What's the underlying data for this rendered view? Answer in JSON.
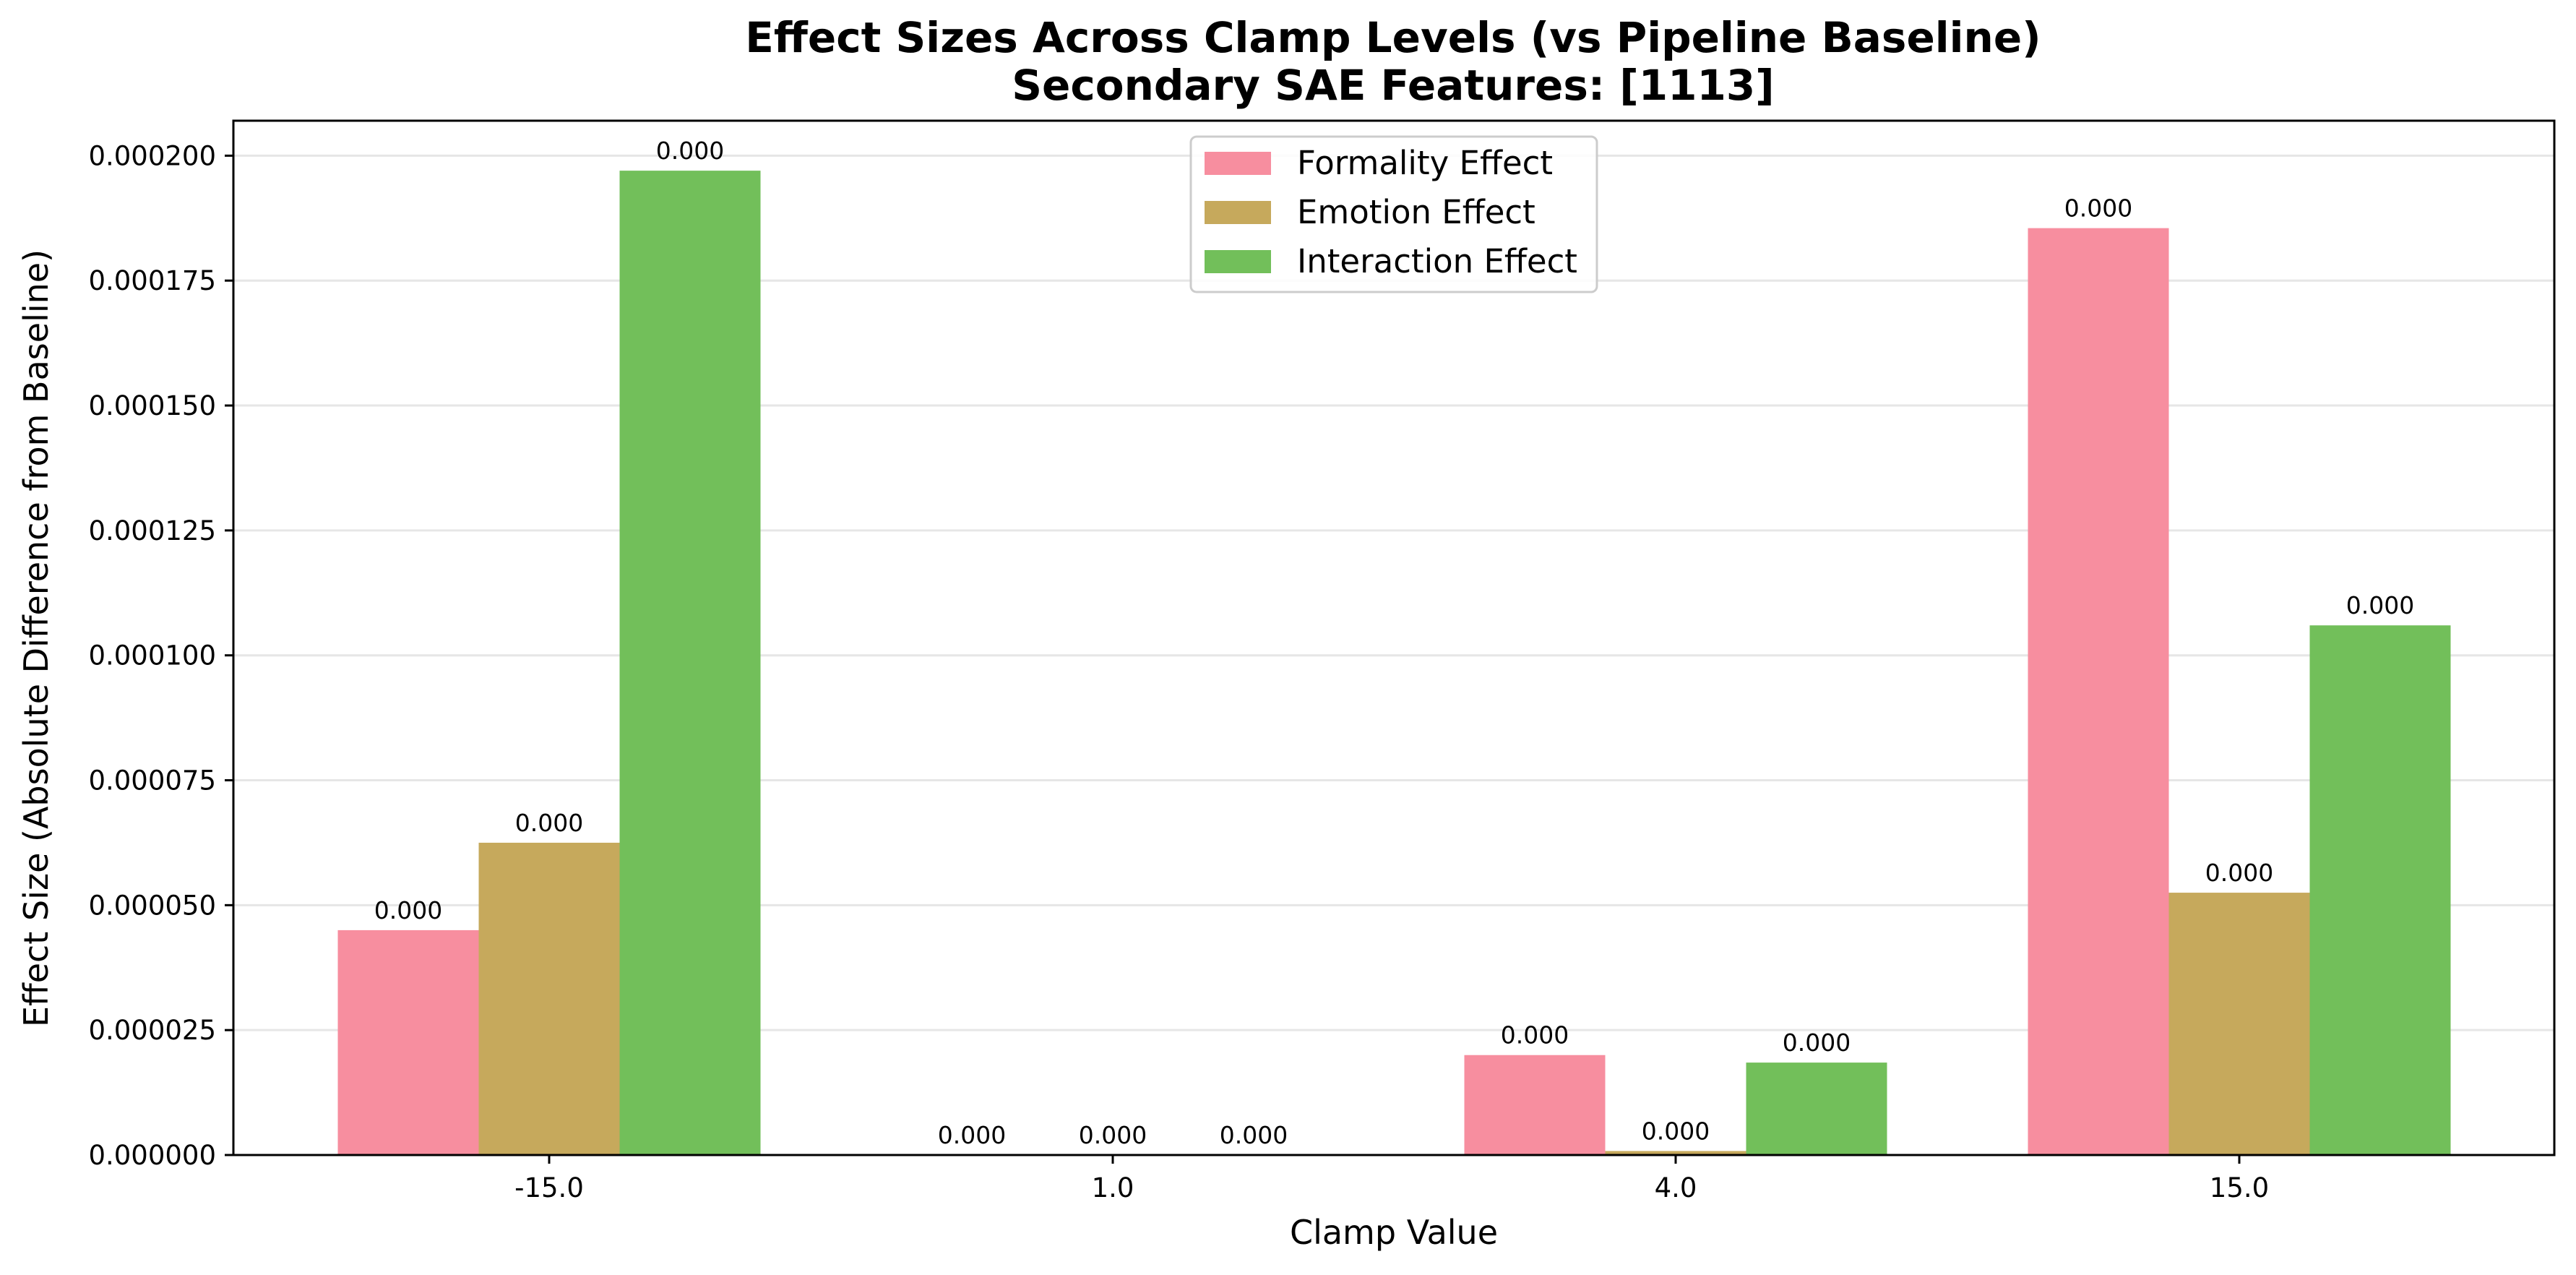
{
  "chart_data": {
    "type": "bar",
    "title": "Effect Sizes Across Clamp Levels (vs Pipeline Baseline)",
    "subtitle": "Secondary SAE Features: [1113]",
    "xlabel": "Clamp Value",
    "ylabel": "Effect Size (Absolute Difference from Baseline)",
    "categories": [
      "-15.0",
      "1.0",
      "4.0",
      "15.0"
    ],
    "ylim": [
      0,
      0.000207
    ],
    "yticks": [
      0.0,
      2.5e-05,
      5e-05,
      7.5e-05,
      0.0001,
      0.000125,
      0.00015,
      0.000175,
      0.0002
    ],
    "ytick_labels": [
      "0.000000",
      "0.000025",
      "0.000050",
      "0.000075",
      "0.000100",
      "0.000125",
      "0.000150",
      "0.000175",
      "0.000200"
    ],
    "grid": "horizontal",
    "legend_position": "upper center",
    "series": [
      {
        "name": "Formality Effect",
        "color": "#f78e9f",
        "values": [
          4.5e-05,
          0.0,
          2e-05,
          0.0001855
        ],
        "labels": [
          "0.000",
          "0.000",
          "0.000",
          "0.000"
        ]
      },
      {
        "name": "Emotion Effect",
        "color": "#c6a95c",
        "values": [
          6.25e-05,
          0.0,
          8e-07,
          5.25e-05
        ],
        "labels": [
          "0.000",
          "0.000",
          "0.000",
          "0.000"
        ]
      },
      {
        "name": "Interaction Effect",
        "color": "#72bf5a",
        "values": [
          0.000197,
          0.0,
          1.85e-05,
          0.000106
        ],
        "labels": [
          "0.000",
          "0.000",
          "0.000",
          "0.000"
        ]
      }
    ]
  }
}
